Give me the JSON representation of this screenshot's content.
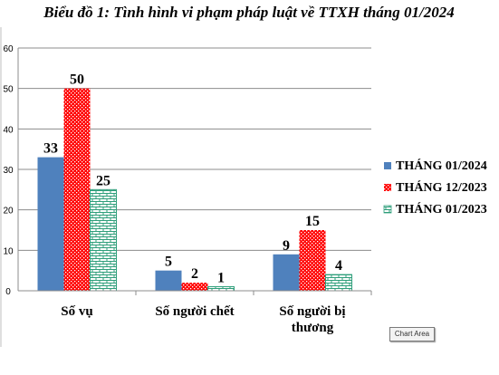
{
  "chart_data": {
    "type": "bar",
    "title": "Biểu đồ 1: Tình hình vi phạm pháp luật về TTXH tháng 01/2024",
    "categories": [
      [
        "Số vụ"
      ],
      [
        "Số người chết"
      ],
      [
        "Số người bị",
        "thương"
      ]
    ],
    "series": [
      {
        "name": "THÁNG 01/2024",
        "values": [
          33,
          5,
          9
        ],
        "color": "#4f81bd",
        "pattern": "solid"
      },
      {
        "name": "THÁNG 12/2023",
        "values": [
          50,
          2,
          15
        ],
        "color": "#ff0000",
        "pattern": "dots"
      },
      {
        "name": "THÁNG 01/2023",
        "values": [
          25,
          1,
          4
        ],
        "color": "#2e9e7a",
        "pattern": "bricks"
      }
    ],
    "ylim": [
      0,
      60
    ],
    "yticks": [
      0,
      10,
      20,
      30,
      40,
      50,
      60
    ],
    "grid": true,
    "legend": "right"
  },
  "tooltip": "Chart Area"
}
